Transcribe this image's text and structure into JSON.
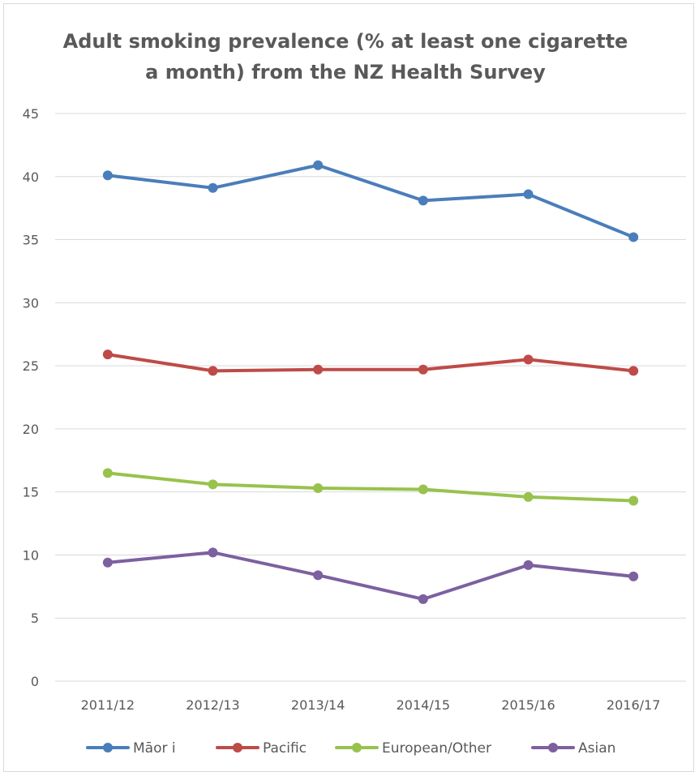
{
  "chart_data": {
    "type": "line",
    "title_lines": [
      "Adult smoking prevalence (% at least one cigarette",
      "a month) from the NZ Health Survey"
    ],
    "categories": [
      "2011/12",
      "2012/13",
      "2013/14",
      "2014/15",
      "2015/16",
      "2016/17"
    ],
    "ylim": [
      0,
      45
    ],
    "yticks": [
      0,
      5,
      10,
      15,
      20,
      25,
      30,
      35,
      40,
      45
    ],
    "grid": true,
    "legend_position": "bottom",
    "series": [
      {
        "name": "Māor i",
        "color": "#4a7ebb",
        "values": [
          40.1,
          39.1,
          40.9,
          38.1,
          38.6,
          35.2
        ]
      },
      {
        "name": "Pacific",
        "color": "#be4b48",
        "values": [
          25.9,
          24.6,
          24.7,
          24.7,
          25.5,
          24.6
        ]
      },
      {
        "name": "European/Other",
        "color": "#98c24d",
        "values": [
          16.5,
          15.6,
          15.3,
          15.2,
          14.6,
          14.3
        ]
      },
      {
        "name": "Asian",
        "color": "#7d60a0",
        "values": [
          9.4,
          10.2,
          8.4,
          6.5,
          9.2,
          8.3
        ]
      }
    ]
  }
}
